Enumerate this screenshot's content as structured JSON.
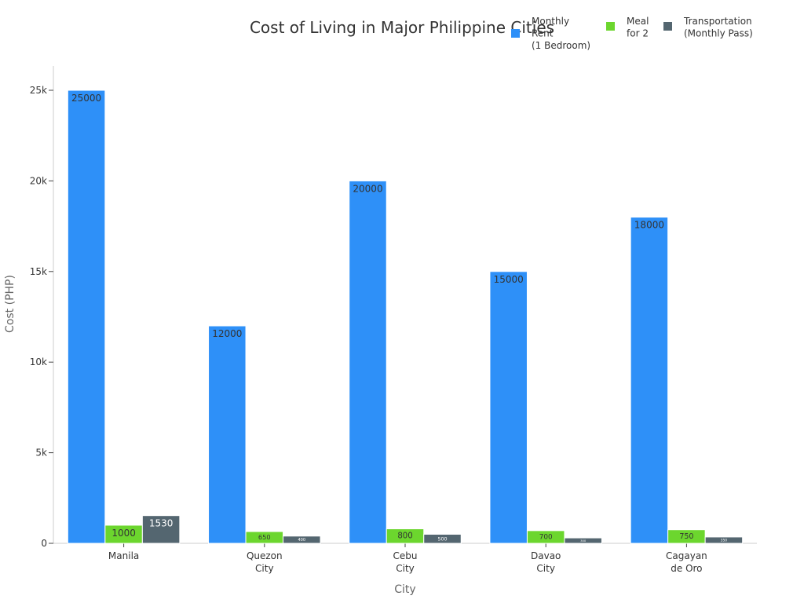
{
  "chart_data": {
    "type": "bar",
    "title": "Cost of Living in Major Philippine Cities",
    "xlabel": "City",
    "ylabel": "Cost (PHP)",
    "categories": [
      [
        "Manila"
      ],
      [
        "Quezon",
        "City"
      ],
      [
        "Cebu",
        "City"
      ],
      [
        "Davao",
        "City"
      ],
      [
        "Cagayan",
        "de Oro"
      ]
    ],
    "series": [
      {
        "name": [
          "Monthly",
          "Rent",
          "(1 Bedroom)"
        ],
        "color": "#2e90f8",
        "values": [
          25000,
          12000,
          20000,
          15000,
          18000
        ]
      },
      {
        "name": [
          "Meal",
          "for 2"
        ],
        "color": "#6cd62e",
        "values": [
          1000,
          650,
          800,
          700,
          750
        ]
      },
      {
        "name": [
          "Transportation",
          "(Monthly Pass)"
        ],
        "color": "#546670",
        "values": [
          1530,
          400,
          500,
          300,
          350
        ]
      }
    ],
    "data_labels": [
      [
        "25000",
        "12000",
        "20000",
        "15000",
        "18000"
      ],
      [
        "1000",
        "650",
        "800",
        "700",
        "750"
      ],
      [
        "1530",
        "400",
        "500",
        "300",
        "350"
      ]
    ],
    "ylim": [
      0,
      26300
    ],
    "yticks": [
      0,
      5000,
      10000,
      15000,
      20000,
      25000
    ],
    "ytick_labels": [
      "0",
      "5k",
      "10k",
      "15k",
      "20k",
      "25k"
    ],
    "grid": false,
    "legend_position": "top-right"
  }
}
